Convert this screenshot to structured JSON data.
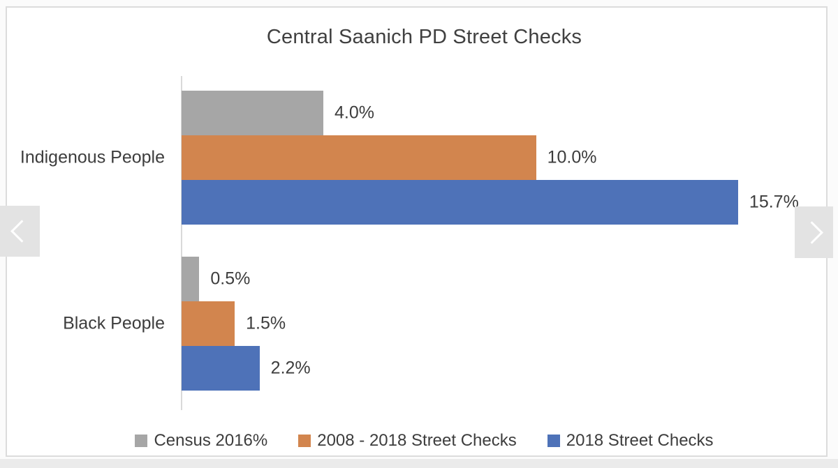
{
  "chart_data": {
    "type": "bar",
    "orientation": "horizontal",
    "title": "Central Saanich PD Street Checks",
    "xlabel": "",
    "ylabel": "",
    "categories": [
      "Indigenous People",
      "Black People"
    ],
    "series": [
      {
        "name": "Census 2016%",
        "color": "#a6a6a6",
        "values": [
          4.0,
          0.5
        ],
        "labels": [
          "4.0%",
          "0.5%"
        ]
      },
      {
        "name": "2008 - 2018 Street Checks",
        "color": "#d2854e",
        "values": [
          10.0,
          1.5
        ],
        "labels": [
          "10.0%",
          "1.5%"
        ]
      },
      {
        "name": "2018 Street Checks",
        "color": "#4e72b8",
        "values": [
          15.7,
          2.2
        ],
        "labels": [
          "15.7%",
          "2.2%"
        ]
      }
    ],
    "xlim": [
      0,
      18.5
    ],
    "grid": false,
    "data_labels": true,
    "legend_position": "bottom",
    "axis_color": "#d9d9d9",
    "text_color": "#3d3d3d"
  },
  "carousel": {
    "prev_icon": "chevron-left",
    "next_icon": "chevron-right"
  }
}
